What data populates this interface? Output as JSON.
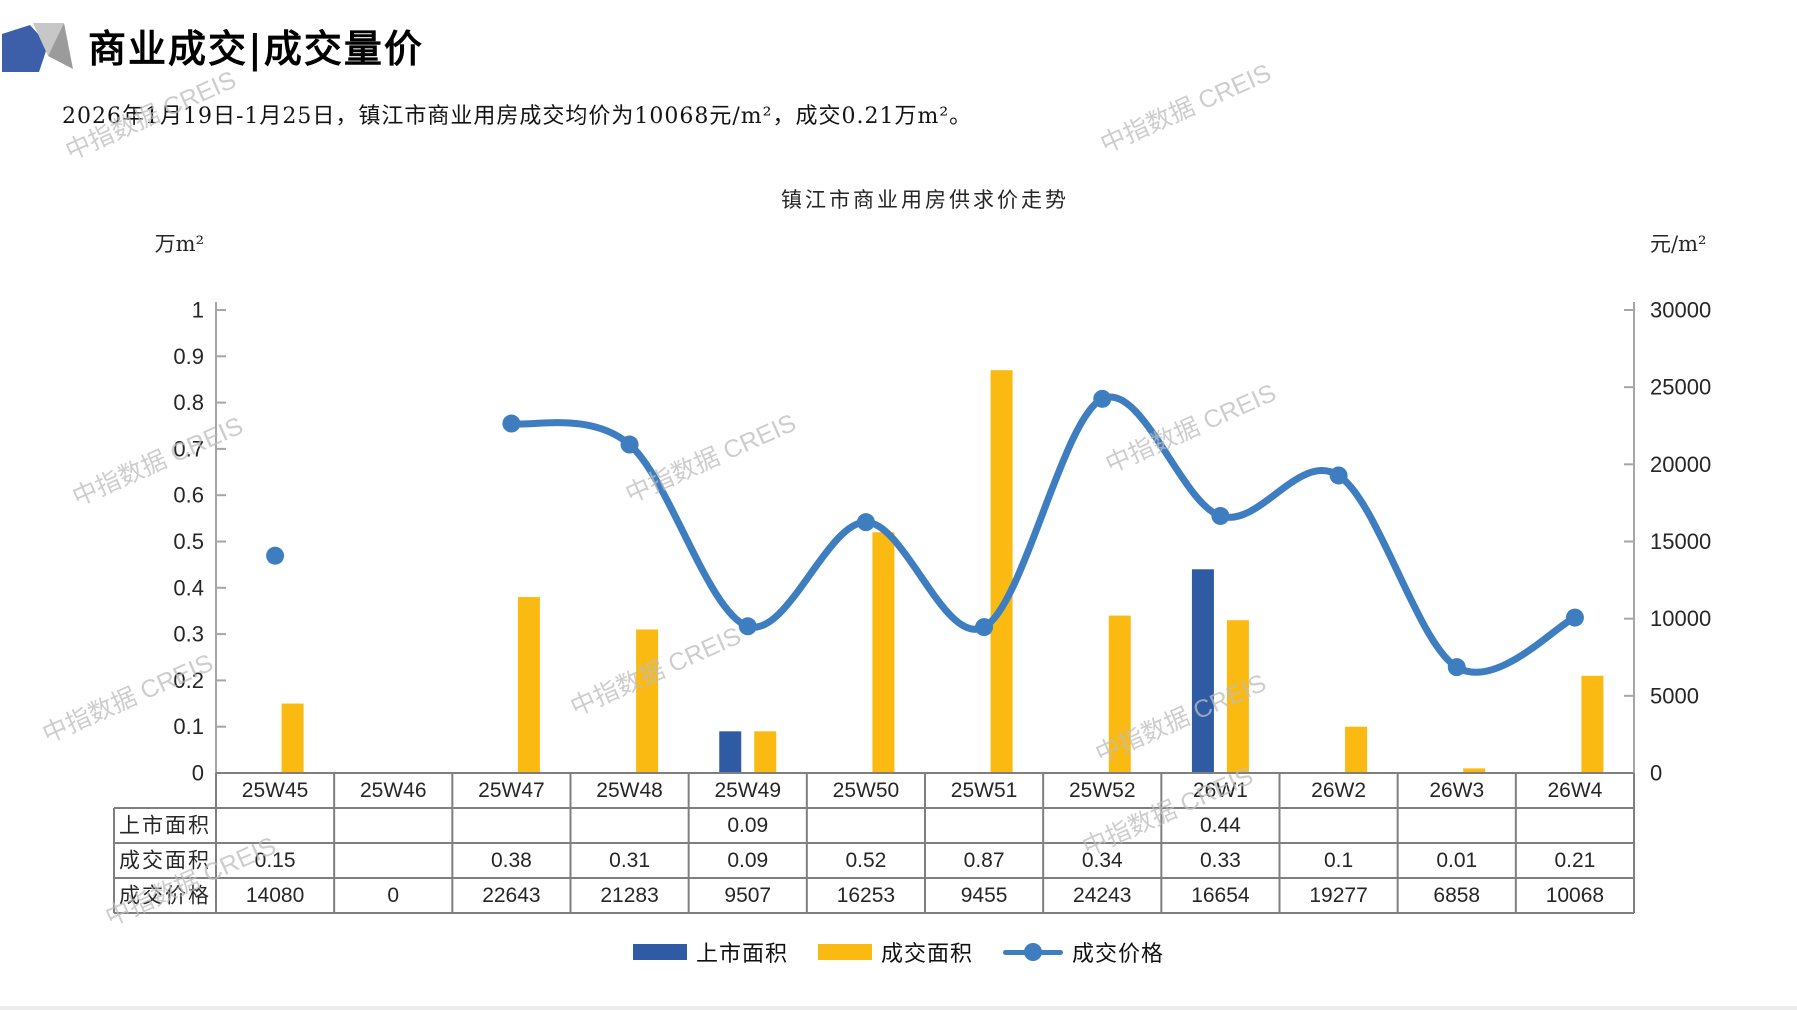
{
  "page": {
    "title": "商业成交|成交量价",
    "subtitle": "2026年1月19日-1月25日，镇江市商业用房成交均价为10068元/m²，成交0.21万m²。",
    "watermark": "中指数据 CREIS"
  },
  "chart_data": {
    "type": "combo",
    "title": "镇江市商业用房供求价走势",
    "categories": [
      "25W45",
      "25W46",
      "25W47",
      "25W48",
      "25W49",
      "25W50",
      "25W51",
      "25W52",
      "26W1",
      "26W2",
      "26W3",
      "26W4"
    ],
    "series": [
      {
        "name": "上市面积",
        "type": "bar",
        "axis": "left",
        "color": "#2F5BA5",
        "values": [
          null,
          null,
          null,
          null,
          0.09,
          null,
          null,
          null,
          0.44,
          null,
          null,
          null
        ]
      },
      {
        "name": "成交面积",
        "type": "bar",
        "axis": "left",
        "color": "#FBBA12",
        "values": [
          0.15,
          null,
          0.38,
          0.31,
          0.09,
          0.52,
          0.87,
          0.34,
          0.33,
          0.1,
          0.01,
          0.21
        ]
      },
      {
        "name": "成交价格",
        "type": "line",
        "axis": "right",
        "color": "#3E7EC0",
        "gap_at_zero": true,
        "values": [
          14080,
          0,
          22643,
          21283,
          9507,
          16253,
          9455,
          24243,
          16654,
          19277,
          6858,
          10068
        ]
      }
    ],
    "left_axis": {
      "unit": "万m²",
      "min": 0,
      "max": 1,
      "step": 0.1
    },
    "right_axis": {
      "unit": "元/m²",
      "min": 0,
      "max": 30000,
      "step": 5000
    },
    "legend": [
      "上市面积",
      "成交面积",
      "成交价格"
    ],
    "legend_position": "bottom",
    "grid": false
  },
  "table": {
    "rows": [
      {
        "label": "上市面积",
        "cells": [
          "",
          "",
          "",
          "",
          "0.09",
          "",
          "",
          "",
          "0.44",
          "",
          "",
          ""
        ]
      },
      {
        "label": "成交面积",
        "cells": [
          "0.15",
          "",
          "0.38",
          "0.31",
          "0.09",
          "0.52",
          "0.87",
          "0.34",
          "0.33",
          "0.1",
          "0.01",
          "0.21"
        ]
      },
      {
        "label": "成交价格",
        "cells": [
          "14080",
          "0",
          "22643",
          "21283",
          "9507",
          "16253",
          "9455",
          "24243",
          "16654",
          "19277",
          "6858",
          "10068"
        ]
      }
    ]
  },
  "colors": {
    "listed_bar": "#2F5BA5",
    "sold_bar": "#FBBA12",
    "price_line": "#3E7EC0",
    "axis": "#A6A6A6",
    "table_border": "#7F7F7F",
    "watermark": "#BDBDBD"
  }
}
